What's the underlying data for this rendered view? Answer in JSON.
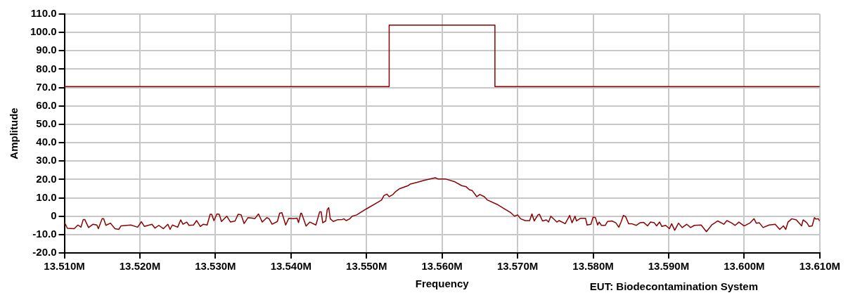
{
  "chart_data": {
    "type": "line",
    "xlabel": "Frequency",
    "ylabel": "Amplitude",
    "annotations": [
      "EUT: Biodecontamination System"
    ],
    "xlim": [
      13.51,
      13.61
    ],
    "xticks": [
      {
        "value": 13.51,
        "label": "13.510M"
      },
      {
        "value": 13.52,
        "label": "13.520M"
      },
      {
        "value": 13.53,
        "label": "13.530M"
      },
      {
        "value": 13.54,
        "label": "13.540M"
      },
      {
        "value": 13.55,
        "label": "13.550M"
      },
      {
        "value": 13.56,
        "label": "13.560M"
      },
      {
        "value": 13.57,
        "label": "13.570M"
      },
      {
        "value": 13.58,
        "label": "13.580M"
      },
      {
        "value": 13.59,
        "label": "13.590M"
      },
      {
        "value": 13.6,
        "label": "13.600M"
      },
      {
        "value": 13.61,
        "label": "13.610M"
      }
    ],
    "ylim": [
      -20,
      110
    ],
    "yticks": [
      {
        "value": -20,
        "label": "-20.0"
      },
      {
        "value": -10,
        "label": "-10.0"
      },
      0,
      {
        "value": 10,
        "label": "10.0"
      },
      {
        "value": 20,
        "label": "20.0"
      },
      {
        "value": 30,
        "label": "30.0"
      },
      {
        "value": 40,
        "label": "40.0"
      },
      {
        "value": 50,
        "label": "50.0"
      },
      {
        "value": 60,
        "label": "60.0"
      },
      {
        "value": 70,
        "label": "70.0"
      },
      {
        "value": 80,
        "label": "80.0"
      },
      {
        "value": 90,
        "label": "90.0"
      },
      {
        "value": 100,
        "label": "100.0"
      },
      {
        "value": 110,
        "label": "110.0"
      }
    ],
    "grid": true,
    "legend": false,
    "marker": "none",
    "line_style": "solid",
    "series": [
      {
        "type": "step",
        "color": "#8b0000",
        "x": [
          13.51,
          13.553,
          13.567,
          13.61
        ],
        "values": [
          70.5,
          104,
          70.5,
          70.5
        ]
      },
      {
        "color": "#8b0000",
        "x": [
          13.51,
          13.5104,
          13.5113,
          13.5118,
          13.5122,
          13.5125,
          13.5127,
          13.5132,
          13.5138,
          13.5143,
          13.5145,
          13.515,
          13.5152,
          13.5155,
          13.5161,
          13.5167,
          13.5172,
          13.5175,
          13.5188,
          13.5197,
          13.5202,
          13.5206,
          13.5216,
          13.522,
          13.5225,
          13.5231,
          13.5237,
          13.524,
          13.5243,
          13.525,
          13.5254,
          13.5257,
          13.5262,
          13.5265,
          13.5271,
          13.5275,
          13.528,
          13.5284,
          13.5289,
          13.5293,
          13.5295,
          13.5298,
          13.5302,
          13.5305,
          13.5308,
          13.5315,
          13.532,
          13.5326,
          13.533,
          13.5334,
          13.5338,
          13.5343,
          13.5349,
          13.5352,
          13.5357,
          13.5362,
          13.5368,
          13.5371,
          13.5375,
          13.5382,
          13.5385,
          13.5388,
          13.5393,
          13.5397,
          13.5403,
          13.5408,
          13.541,
          13.5413,
          13.5414,
          13.542,
          13.5425,
          13.5433,
          13.5438,
          13.544,
          13.5442,
          13.5446,
          13.5448,
          13.545,
          13.5452,
          13.5456,
          13.5462,
          13.5468,
          13.547,
          13.5473,
          13.5478,
          13.5481,
          13.5487,
          13.55,
          13.5515,
          13.552,
          13.5523,
          13.5527,
          13.553,
          13.5535,
          13.5538,
          13.5544,
          13.5555,
          13.5558,
          13.5567,
          13.5577,
          13.5591,
          13.5595,
          13.5605,
          13.5617,
          13.5626,
          13.5632,
          13.5636,
          13.564,
          13.5646,
          13.565,
          13.5656,
          13.566,
          13.5673,
          13.5685,
          13.5691,
          13.5696,
          13.57,
          13.5704,
          13.571,
          13.5716,
          13.5719,
          13.5722,
          13.5727,
          13.5729,
          13.5733,
          13.5738,
          13.5741,
          13.5744,
          13.5752,
          13.5755,
          13.5763,
          13.5769,
          13.5772,
          13.5776,
          13.5778,
          13.5783,
          13.579,
          13.5792,
          13.5797,
          13.58,
          13.5803,
          13.5806,
          13.5808,
          13.5811,
          13.5816,
          13.5819,
          13.5825,
          13.583,
          13.5834,
          13.5837,
          13.584,
          13.5843,
          13.5847,
          13.5851,
          13.5857,
          13.5862,
          13.5867,
          13.5872,
          13.5876,
          13.5881,
          13.5884,
          13.5888,
          13.5891,
          13.5896,
          13.5901,
          13.5904,
          13.5908,
          13.5913,
          13.5918,
          13.5924,
          13.5929,
          13.5934,
          13.5943,
          13.595,
          13.5957,
          13.5965,
          13.5973,
          13.5977,
          13.5983,
          13.5988,
          13.5993,
          13.6,
          13.6008,
          13.6013,
          13.6016,
          13.602,
          13.6025,
          13.6033,
          13.6041,
          13.6047,
          13.6052,
          13.6055,
          13.6058,
          13.6063,
          13.6069,
          13.6076,
          13.6078,
          13.6083,
          13.6086,
          13.609,
          13.6093,
          13.6095,
          13.6098,
          13.61
        ],
        "values": [
          -3.2,
          -6.6,
          -6.8,
          -4.8,
          -6,
          -1.8,
          -1.8,
          -6.2,
          -4.4,
          -4.8,
          -6.8,
          -1.4,
          -1.4,
          -5,
          -3.8,
          -6.8,
          -7.2,
          -5.3,
          -4.8,
          -6,
          -3,
          -5.6,
          -4.4,
          -6.5,
          -5,
          -6.8,
          -4.4,
          -7.2,
          -4.8,
          -6,
          -2,
          -4.4,
          -3.2,
          -5,
          -4.8,
          -2.4,
          -5.6,
          -4.4,
          -4.8,
          1,
          1,
          -2.4,
          1.2,
          1,
          -2.9,
          0,
          -3.2,
          -2.6,
          1,
          0.7,
          -4,
          -0.8,
          -1.1,
          -1.4,
          1.2,
          -3.2,
          -0.8,
          -1.4,
          -4.4,
          -2.9,
          1.6,
          1.9,
          -4.8,
          -1.2,
          -1.4,
          -1.1,
          -3.5,
          1.6,
          1.6,
          -5.4,
          -3.2,
          -4.8,
          2.4,
          2.4,
          -3.6,
          -2.6,
          3.6,
          4.6,
          -1.4,
          -2.9,
          -1.9,
          -1.8,
          -1.4,
          -2.4,
          -1.4,
          0,
          0.7,
          4,
          7.6,
          8.8,
          11.2,
          12,
          10.6,
          11.8,
          13.2,
          15,
          16.6,
          17.5,
          18.4,
          19.6,
          20.9,
          20.2,
          20.2,
          18.7,
          16.6,
          16,
          14.4,
          13.9,
          10.6,
          11.8,
          10.6,
          8.8,
          6.4,
          3.4,
          1.9,
          0,
          0.7,
          -1.4,
          -2.4,
          -2.4,
          1.2,
          -2.6,
          0.7,
          1,
          -2.6,
          -2,
          -3.2,
          0,
          -3.2,
          -2.4,
          -4.1,
          0.4,
          -3.6,
          0,
          -2.6,
          -1.2,
          -1.2,
          -4.8,
          -4.4,
          -0.5,
          -0.8,
          -4.8,
          -3.2,
          -5,
          -5,
          -2.9,
          -2.6,
          -3.6,
          -6,
          -3.2,
          0.4,
          -0.2,
          -4.1,
          -4.1,
          -5,
          -3.6,
          -3.4,
          -5.3,
          -3.2,
          -3.6,
          -5.3,
          -3.2,
          -5.6,
          -5,
          -6.8,
          -4.1,
          -7.7,
          -3.8,
          -6.2,
          -4.4,
          -6.2,
          -5,
          -4.8,
          -8.4,
          -4.8,
          -2.6,
          -4.4,
          -2.4,
          -3.6,
          -5,
          -3.2,
          -5.3,
          -3.6,
          -1.4,
          -3.8,
          -3.6,
          -6.2,
          -4.8,
          -4.4,
          -7.2,
          -5.3,
          -7.2,
          -3.2,
          -1.4,
          -2,
          -5.3,
          -2,
          -3.6,
          -5.6,
          -5.3,
          -0.8,
          -1.6,
          -1.4,
          -2.6
        ]
      }
    ]
  }
}
